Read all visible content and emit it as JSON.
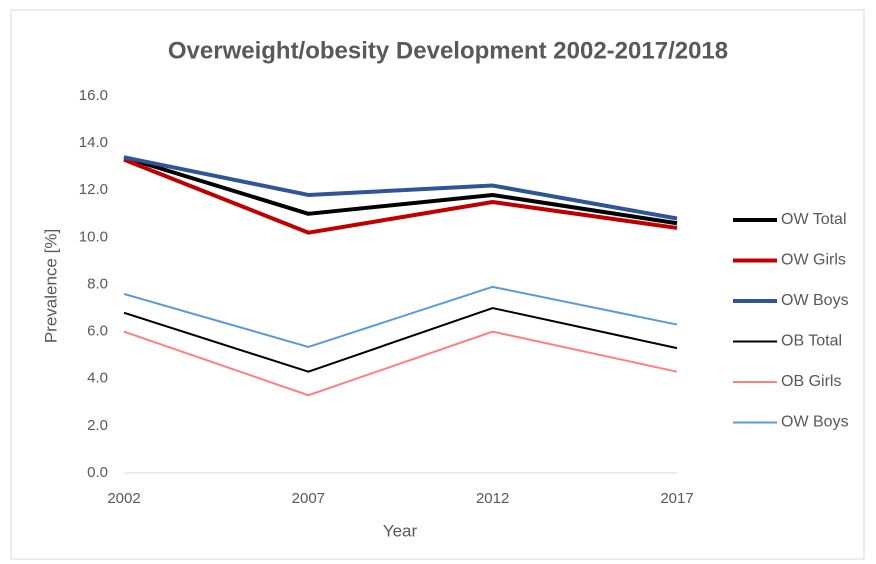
{
  "chart_data": {
    "type": "line",
    "title": "Overweight/obesity Development 2002-2017/2018",
    "x_label": "Year",
    "y_label": "Prevalence [%]",
    "categories": [
      "2002",
      "2007",
      "2012",
      "2017"
    ],
    "series": [
      {
        "name": "OW Total",
        "color": "#000000",
        "width": 4,
        "values": [
          13.4,
          11.0,
          11.8,
          10.6
        ]
      },
      {
        "name": "OW Girls",
        "color": "#c00000",
        "width": 4,
        "values": [
          13.3,
          10.2,
          11.5,
          10.4
        ]
      },
      {
        "name": "OW Boys",
        "color": "#2f5597",
        "width": 4,
        "values": [
          13.4,
          11.8,
          12.2,
          10.8
        ]
      },
      {
        "name": "OB Total",
        "color": "#000000",
        "width": 2,
        "values": [
          6.8,
          4.3,
          7.0,
          5.3
        ]
      },
      {
        "name": "OB Girls",
        "color": "#ff8080",
        "width": 2,
        "values": [
          6.0,
          3.3,
          6.0,
          4.3
        ]
      },
      {
        "name": "OW Boys",
        "color": "#5b9bd5",
        "width": 2,
        "values": [
          7.6,
          5.35,
          7.9,
          6.3
        ]
      }
    ],
    "ylim": [
      0,
      16
    ],
    "yticks": [
      {
        "value": 0,
        "label": "0.0"
      },
      {
        "value": 2,
        "label": "2.0"
      },
      {
        "value": 4,
        "label": "4.0"
      },
      {
        "value": 6,
        "label": "6.0"
      },
      {
        "value": 8,
        "label": "8.0"
      },
      {
        "value": 10,
        "label": "10.0"
      },
      {
        "value": 12,
        "label": "12.0"
      },
      {
        "value": 14,
        "label": "14.0"
      },
      {
        "value": 16,
        "label": "16.0"
      }
    ],
    "grid": false,
    "legend": "right"
  }
}
